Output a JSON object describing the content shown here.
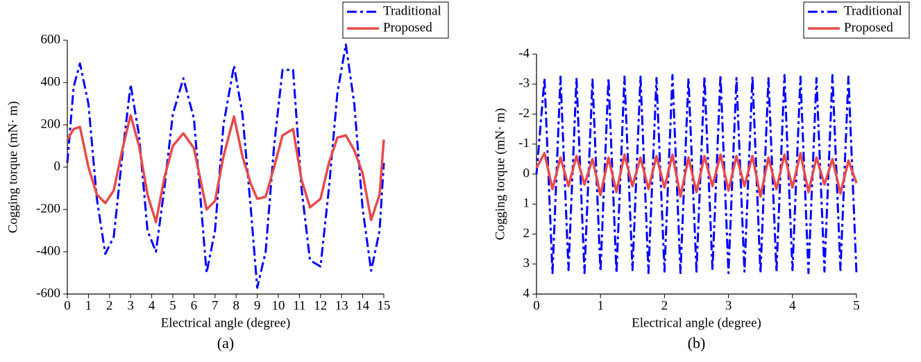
{
  "chart_data": [
    {
      "type": "line",
      "caption": "(a)",
      "x_label": "Electrical angle (degree)",
      "y_label": "Cogging torque (mN· m)",
      "x": [
        0,
        0.3,
        0.6,
        1.0,
        1.4,
        1.8,
        2.2,
        2.6,
        3.0,
        3.4,
        3.8,
        4.2,
        4.6,
        5.0,
        5.5,
        6.0,
        6.6,
        7.0,
        7.4,
        7.9,
        8.3,
        8.7,
        9.0,
        9.4,
        9.8,
        10.2,
        10.7,
        11.1,
        11.5,
        12.0,
        12.4,
        12.8,
        13.2,
        13.6,
        14.0,
        14.4,
        14.8,
        15.0
      ],
      "series": [
        {
          "name": "Traditional",
          "color": "#0000ff",
          "style": "dashdot",
          "values": [
            20,
            380,
            490,
            300,
            -150,
            -410,
            -330,
            50,
            390,
            150,
            -300,
            -400,
            -100,
            250,
            420,
            230,
            -500,
            -300,
            200,
            480,
            250,
            -200,
            -570,
            -400,
            100,
            460,
            460,
            -100,
            -440,
            -470,
            -100,
            350,
            580,
            300,
            -200,
            -490,
            -300,
            20
          ]
        },
        {
          "name": "Proposed",
          "color": "#e84a4a",
          "style": "solid",
          "values": [
            130,
            180,
            190,
            0,
            -130,
            -170,
            -110,
            80,
            245,
            100,
            -130,
            -260,
            -50,
            100,
            160,
            90,
            -200,
            -160,
            50,
            240,
            50,
            -80,
            -150,
            -140,
            0,
            150,
            180,
            -60,
            -190,
            -150,
            20,
            140,
            150,
            80,
            -30,
            -250,
            -130,
            130
          ]
        }
      ],
      "xlim": [
        0,
        15
      ],
      "xticks": [
        0,
        1,
        2,
        3,
        4,
        5,
        6,
        7,
        8,
        9,
        10,
        11,
        12,
        13,
        14,
        15
      ],
      "ylim": [
        -600,
        600
      ],
      "yticks": [
        -600,
        -400,
        -200,
        0,
        200,
        400,
        600
      ],
      "legend": "top-right"
    },
    {
      "type": "line",
      "caption": "(b)",
      "x_label": "Electrical angle (degree)",
      "y_label": "Cogging torque (mN· m)",
      "x": [
        0,
        0.125,
        0.25,
        0.375,
        0.5,
        0.625,
        0.75,
        0.875,
        1,
        1.125,
        1.25,
        1.375,
        1.5,
        1.625,
        1.75,
        1.875,
        2,
        2.125,
        2.25,
        2.375,
        2.5,
        2.625,
        2.75,
        2.875,
        3,
        3.125,
        3.25,
        3.375,
        3.5,
        3.625,
        3.75,
        3.875,
        4,
        4.125,
        4.25,
        4.375,
        4.5,
        4.625,
        4.75,
        4.875,
        5
      ],
      "series": [
        {
          "name": "Traditional",
          "color": "#0000ff",
          "style": "dashdot",
          "values": [
            0,
            -3.2,
            3.3,
            -3.25,
            3.2,
            -3.2,
            3.3,
            -3.15,
            3.25,
            -3.2,
            3.3,
            -3.25,
            3.2,
            -3.25,
            3.3,
            -3.2,
            3.25,
            -3.3,
            3.3,
            -3.2,
            3.25,
            -3.25,
            3.2,
            -3.3,
            3.3,
            -3.2,
            3.25,
            -3.25,
            3.3,
            -3.2,
            3.25,
            -3.3,
            3.2,
            -3.25,
            3.3,
            -3.2,
            3.25,
            -3.3,
            3.2,
            -3.25,
            3.3
          ]
        },
        {
          "name": "Proposed",
          "color": "#e84a4a",
          "style": "solid",
          "values": [
            -0.2,
            -0.7,
            0.5,
            -0.55,
            0.4,
            -0.6,
            0.35,
            -0.5,
            0.7,
            -0.55,
            0.6,
            -0.65,
            0.4,
            -0.55,
            0.5,
            -0.6,
            0.45,
            -0.65,
            0.75,
            -0.55,
            0.6,
            -0.6,
            0.4,
            -0.65,
            0.55,
            -0.6,
            0.4,
            -0.6,
            0.75,
            -0.55,
            0.5,
            -0.65,
            0.45,
            -0.7,
            0.6,
            -0.55,
            0.35,
            -0.5,
            0.65,
            -0.45,
            0.3
          ]
        }
      ],
      "xlim": [
        0,
        5
      ],
      "xticks": [
        0,
        1,
        2,
        3,
        4,
        5
      ],
      "ylim": [
        4,
        -4
      ],
      "yticks": [
        -4,
        -3,
        -2,
        -1,
        0,
        1,
        2,
        3,
        4
      ],
      "legend": "top-right"
    }
  ]
}
